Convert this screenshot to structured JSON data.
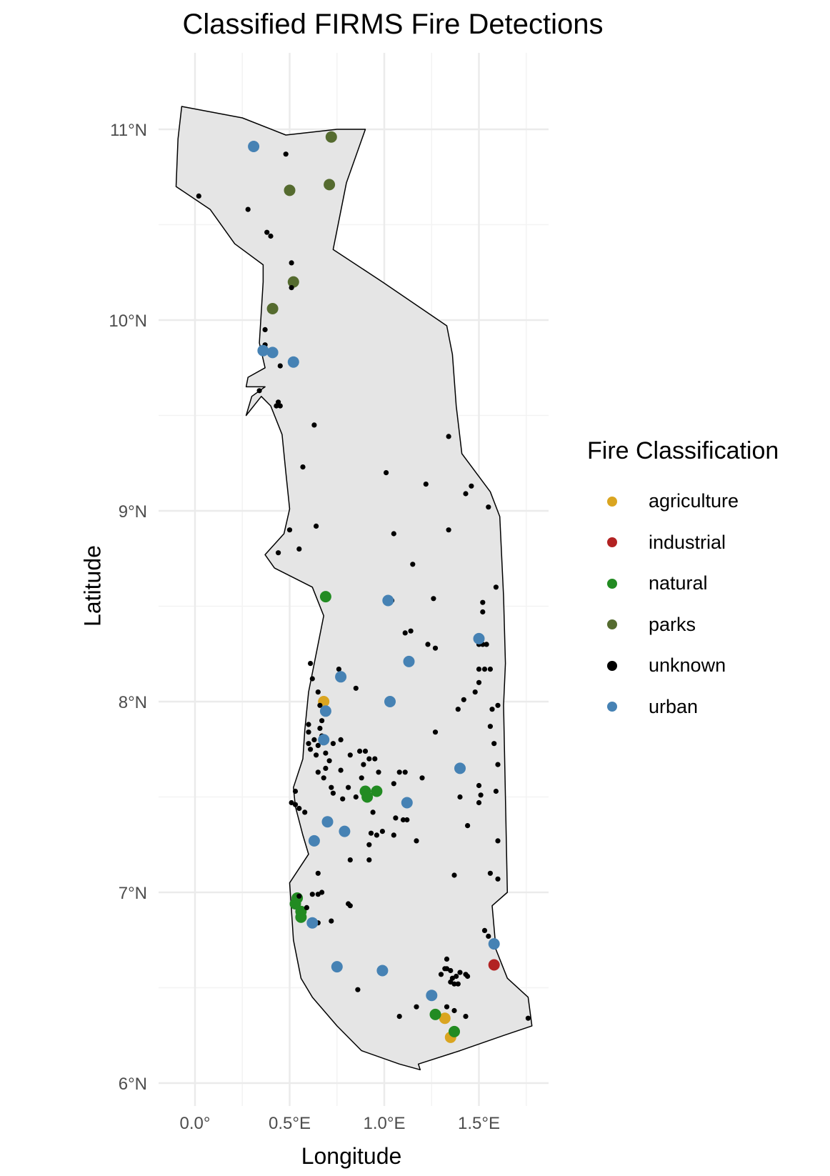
{
  "title": "Classified FIRMS Fire Detections",
  "chart_data": {
    "type": "scatter",
    "title": "Classified FIRMS Fire Detections",
    "xlabel": "Longitude",
    "ylabel": "Latitude",
    "xlim": [
      -0.1,
      1.87
    ],
    "ylim": [
      5.85,
      11.35
    ],
    "x_ticks": [
      0,
      0.5,
      1,
      1.5
    ],
    "x_tick_labels": [
      "0.0°",
      "0.5°E",
      "1.0°E",
      "1.5°E"
    ],
    "y_ticks": [
      6,
      7,
      8,
      9,
      10,
      11
    ],
    "y_tick_labels": [
      "6°N",
      "7°N",
      "8°N",
      "9°N",
      "10°N",
      "11°N"
    ],
    "grid": true,
    "legend_title": "Fire Classification",
    "legend_position": "right",
    "region_fill": "#e5e5e5",
    "region_outline": [
      [
        -0.07,
        11.12
      ],
      [
        0.25,
        11.06
      ],
      [
        0.48,
        10.97
      ],
      [
        0.75,
        11.0
      ],
      [
        0.9,
        11.0
      ],
      [
        0.8,
        10.72
      ],
      [
        0.73,
        10.37
      ],
      [
        0.99,
        10.2
      ],
      [
        1.33,
        9.97
      ],
      [
        1.36,
        9.82
      ],
      [
        1.38,
        9.55
      ],
      [
        1.41,
        9.3
      ],
      [
        1.56,
        9.1
      ],
      [
        1.61,
        8.97
      ],
      [
        1.63,
        8.55
      ],
      [
        1.64,
        8.2
      ],
      [
        1.63,
        7.98
      ],
      [
        1.64,
        7.5
      ],
      [
        1.65,
        7.0
      ],
      [
        1.57,
        6.93
      ],
      [
        1.59,
        6.7
      ],
      [
        1.65,
        6.55
      ],
      [
        1.76,
        6.45
      ],
      [
        1.78,
        6.3
      ],
      [
        1.63,
        6.25
      ],
      [
        1.4,
        6.17
      ],
      [
        1.18,
        6.1
      ],
      [
        1.19,
        6.07
      ],
      [
        1.08,
        6.1
      ],
      [
        0.88,
        6.17
      ],
      [
        0.75,
        6.3
      ],
      [
        0.62,
        6.45
      ],
      [
        0.56,
        6.55
      ],
      [
        0.52,
        6.75
      ],
      [
        0.5,
        7.05
      ],
      [
        0.6,
        7.2
      ],
      [
        0.57,
        7.3
      ],
      [
        0.53,
        7.45
      ],
      [
        0.52,
        7.55
      ],
      [
        0.57,
        7.7
      ],
      [
        0.58,
        7.85
      ],
      [
        0.6,
        8.05
      ],
      [
        0.64,
        8.25
      ],
      [
        0.68,
        8.45
      ],
      [
        0.62,
        8.6
      ],
      [
        0.42,
        8.7
      ],
      [
        0.37,
        8.77
      ],
      [
        0.47,
        8.88
      ],
      [
        0.5,
        9.01
      ],
      [
        0.48,
        9.2
      ],
      [
        0.46,
        9.4
      ],
      [
        0.4,
        9.55
      ],
      [
        0.35,
        9.6
      ],
      [
        0.27,
        9.5
      ],
      [
        0.3,
        9.6
      ],
      [
        0.37,
        9.65
      ],
      [
        0.27,
        9.65
      ],
      [
        0.28,
        9.7
      ],
      [
        0.37,
        9.75
      ],
      [
        0.34,
        9.88
      ],
      [
        0.36,
        10.2
      ],
      [
        0.36,
        10.29
      ],
      [
        0.21,
        10.4
      ],
      [
        0.08,
        10.58
      ],
      [
        -0.1,
        10.7
      ],
      [
        -0.09,
        10.95
      ],
      [
        -0.07,
        11.12
      ]
    ],
    "series": [
      {
        "name": "agriculture",
        "color": "#daa520",
        "points": [
          [
            0.68,
            8.0
          ],
          [
            1.32,
            6.34
          ],
          [
            1.35,
            6.24
          ]
        ]
      },
      {
        "name": "industrial",
        "color": "#b22222",
        "points": [
          [
            1.58,
            6.62
          ]
        ]
      },
      {
        "name": "natural",
        "color": "#228b22",
        "points": [
          [
            0.69,
            8.55
          ],
          [
            0.9,
            7.53
          ],
          [
            0.96,
            7.53
          ],
          [
            0.91,
            7.5
          ],
          [
            0.54,
            6.97
          ],
          [
            0.53,
            6.94
          ],
          [
            0.56,
            6.9
          ],
          [
            0.56,
            6.87
          ],
          [
            1.27,
            6.36
          ],
          [
            1.37,
            6.27
          ]
        ]
      },
      {
        "name": "parks",
        "color": "#556b2f",
        "points": [
          [
            0.72,
            10.96
          ],
          [
            0.71,
            10.71
          ],
          [
            0.5,
            10.68
          ],
          [
            0.52,
            10.2
          ],
          [
            0.41,
            10.06
          ]
        ]
      },
      {
        "name": "unknown",
        "color": "#000000",
        "points": [
          [
            0.02,
            10.65
          ],
          [
            0.28,
            10.58
          ],
          [
            0.48,
            10.87
          ],
          [
            0.38,
            10.46
          ],
          [
            0.4,
            10.44
          ],
          [
            0.51,
            10.3
          ],
          [
            0.51,
            10.17
          ],
          [
            0.37,
            9.95
          ],
          [
            0.37,
            9.87
          ],
          [
            0.45,
            9.76
          ],
          [
            0.34,
            9.63
          ],
          [
            0.43,
            9.55
          ],
          [
            0.45,
            9.55
          ],
          [
            0.44,
            9.57
          ],
          [
            0.63,
            9.45
          ],
          [
            0.57,
            9.23
          ],
          [
            1.01,
            9.2
          ],
          [
            1.22,
            9.14
          ],
          [
            1.34,
            9.39
          ],
          [
            1.46,
            9.13
          ],
          [
            1.43,
            9.09
          ],
          [
            1.55,
            9.02
          ],
          [
            0.5,
            8.9
          ],
          [
            0.64,
            8.92
          ],
          [
            0.44,
            8.78
          ],
          [
            0.55,
            8.8
          ],
          [
            1.05,
            8.88
          ],
          [
            1.34,
            8.9
          ],
          [
            1.15,
            8.72
          ],
          [
            1.59,
            8.6
          ],
          [
            1.26,
            8.54
          ],
          [
            1.52,
            8.52
          ],
          [
            1.52,
            8.47
          ],
          [
            1.04,
            8.53
          ],
          [
            1.11,
            8.36
          ],
          [
            1.14,
            8.37
          ],
          [
            1.23,
            8.3
          ],
          [
            1.27,
            8.28
          ],
          [
            1.5,
            8.3
          ],
          [
            1.52,
            8.3
          ],
          [
            1.54,
            8.3
          ],
          [
            1.5,
            8.17
          ],
          [
            1.53,
            8.17
          ],
          [
            1.56,
            8.17
          ],
          [
            1.5,
            8.1
          ],
          [
            1.48,
            8.05
          ],
          [
            0.61,
            8.2
          ],
          [
            0.62,
            8.12
          ],
          [
            0.76,
            8.17
          ],
          [
            0.85,
            8.07
          ],
          [
            0.65,
            8.05
          ],
          [
            0.66,
            7.98
          ],
          [
            0.7,
            7.95
          ],
          [
            0.67,
            7.9
          ],
          [
            0.6,
            7.88
          ],
          [
            0.6,
            7.84
          ],
          [
            0.66,
            7.86
          ],
          [
            0.63,
            7.8
          ],
          [
            0.67,
            7.82
          ],
          [
            0.6,
            7.78
          ],
          [
            0.61,
            7.75
          ],
          [
            0.65,
            7.77
          ],
          [
            0.64,
            7.72
          ],
          [
            0.69,
            7.73
          ],
          [
            0.71,
            7.69
          ],
          [
            0.69,
            7.65
          ],
          [
            0.77,
            7.8
          ],
          [
            0.73,
            7.78
          ],
          [
            0.82,
            7.72
          ],
          [
            0.87,
            7.74
          ],
          [
            0.9,
            7.74
          ],
          [
            0.92,
            7.7
          ],
          [
            0.89,
            7.67
          ],
          [
            0.95,
            7.7
          ],
          [
            0.65,
            7.63
          ],
          [
            0.68,
            7.6
          ],
          [
            0.77,
            7.64
          ],
          [
            0.81,
            7.55
          ],
          [
            0.88,
            7.6
          ],
          [
            0.97,
            7.63
          ],
          [
            1.08,
            7.63
          ],
          [
            1.11,
            7.63
          ],
          [
            1.2,
            7.6
          ],
          [
            1.05,
            7.57
          ],
          [
            0.72,
            7.55
          ],
          [
            0.73,
            7.52
          ],
          [
            0.78,
            7.49
          ],
          [
            0.85,
            7.5
          ],
          [
            0.94,
            7.42
          ],
          [
            1.06,
            7.39
          ],
          [
            1.1,
            7.38
          ],
          [
            1.12,
            7.38
          ],
          [
            0.53,
            7.53
          ],
          [
            0.51,
            7.47
          ],
          [
            0.53,
            7.46
          ],
          [
            0.55,
            7.44
          ],
          [
            0.58,
            7.42
          ],
          [
            0.93,
            7.31
          ],
          [
            0.96,
            7.3
          ],
          [
            0.99,
            7.32
          ],
          [
            1.05,
            7.3
          ],
          [
            0.92,
            7.25
          ],
          [
            1.17,
            7.27
          ],
          [
            1.4,
            7.5
          ],
          [
            1.5,
            7.56
          ],
          [
            1.51,
            7.51
          ],
          [
            1.5,
            7.47
          ],
          [
            1.59,
            7.53
          ],
          [
            1.44,
            7.35
          ],
          [
            1.6,
            7.67
          ],
          [
            1.58,
            7.78
          ],
          [
            1.56,
            7.87
          ],
          [
            1.57,
            7.96
          ],
          [
            1.6,
            7.98
          ],
          [
            1.42,
            8.01
          ],
          [
            1.39,
            7.96
          ],
          [
            1.27,
            7.84
          ],
          [
            0.65,
            7.1
          ],
          [
            0.82,
            7.17
          ],
          [
            0.92,
            7.17
          ],
          [
            0.62,
            6.99
          ],
          [
            0.65,
            6.99
          ],
          [
            0.67,
            7.0
          ],
          [
            0.55,
            6.98
          ],
          [
            0.59,
            6.92
          ],
          [
            0.82,
            6.93
          ],
          [
            0.81,
            6.94
          ],
          [
            0.72,
            6.85
          ],
          [
            0.65,
            6.84
          ],
          [
            1.37,
            7.09
          ],
          [
            1.56,
            7.1
          ],
          [
            1.6,
            7.07
          ],
          [
            1.53,
            6.8
          ],
          [
            1.55,
            6.77
          ],
          [
            1.33,
            6.65
          ],
          [
            1.32,
            6.6
          ],
          [
            1.3,
            6.57
          ],
          [
            1.35,
            6.59
          ],
          [
            1.38,
            6.56
          ],
          [
            1.4,
            6.58
          ],
          [
            1.43,
            6.57
          ],
          [
            1.37,
            6.52
          ],
          [
            1.36,
            6.55
          ],
          [
            1.39,
            6.52
          ],
          [
            1.44,
            6.56
          ],
          [
            1.35,
            6.53
          ],
          [
            1.33,
            6.6
          ],
          [
            0.75,
            6.62
          ],
          [
            0.86,
            6.49
          ],
          [
            1.17,
            6.4
          ],
          [
            1.33,
            6.4
          ],
          [
            1.37,
            6.38
          ],
          [
            1.43,
            6.35
          ],
          [
            1.08,
            6.35
          ],
          [
            1.76,
            6.34
          ],
          [
            1.6,
            7.27
          ],
          [
            1.57,
            6.73
          ]
        ]
      },
      {
        "name": "urban",
        "color": "#4682b4",
        "points": [
          [
            0.31,
            10.91
          ],
          [
            0.36,
            9.84
          ],
          [
            0.41,
            9.83
          ],
          [
            0.52,
            9.78
          ],
          [
            0.69,
            7.95
          ],
          [
            0.68,
            7.8
          ],
          [
            0.7,
            7.37
          ],
          [
            0.63,
            7.27
          ],
          [
            0.79,
            7.32
          ],
          [
            0.62,
            6.84
          ],
          [
            0.75,
            6.61
          ],
          [
            0.99,
            6.59
          ],
          [
            1.25,
            6.46
          ],
          [
            0.77,
            8.13
          ],
          [
            1.02,
            8.53
          ],
          [
            1.13,
            8.21
          ],
          [
            1.03,
            8.0
          ],
          [
            1.4,
            7.65
          ],
          [
            1.12,
            7.47
          ],
          [
            1.5,
            8.33
          ],
          [
            1.58,
            6.73
          ]
        ]
      }
    ]
  }
}
